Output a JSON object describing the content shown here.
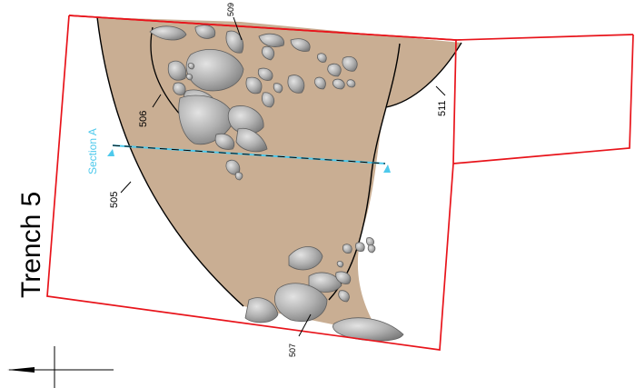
{
  "title": "Trench 5",
  "section_label": "Section A",
  "contexts": {
    "c505": "505",
    "c506": "506",
    "c507": "507",
    "c509": "509",
    "c511": "511"
  },
  "colors": {
    "trench_edge": "#e8141b",
    "fill": "#c9ae93",
    "stone_fill": "#a9a9a9",
    "stone_edge": "#5f5f5f",
    "section_line": "#4ec9ec",
    "text": "#000000"
  }
}
